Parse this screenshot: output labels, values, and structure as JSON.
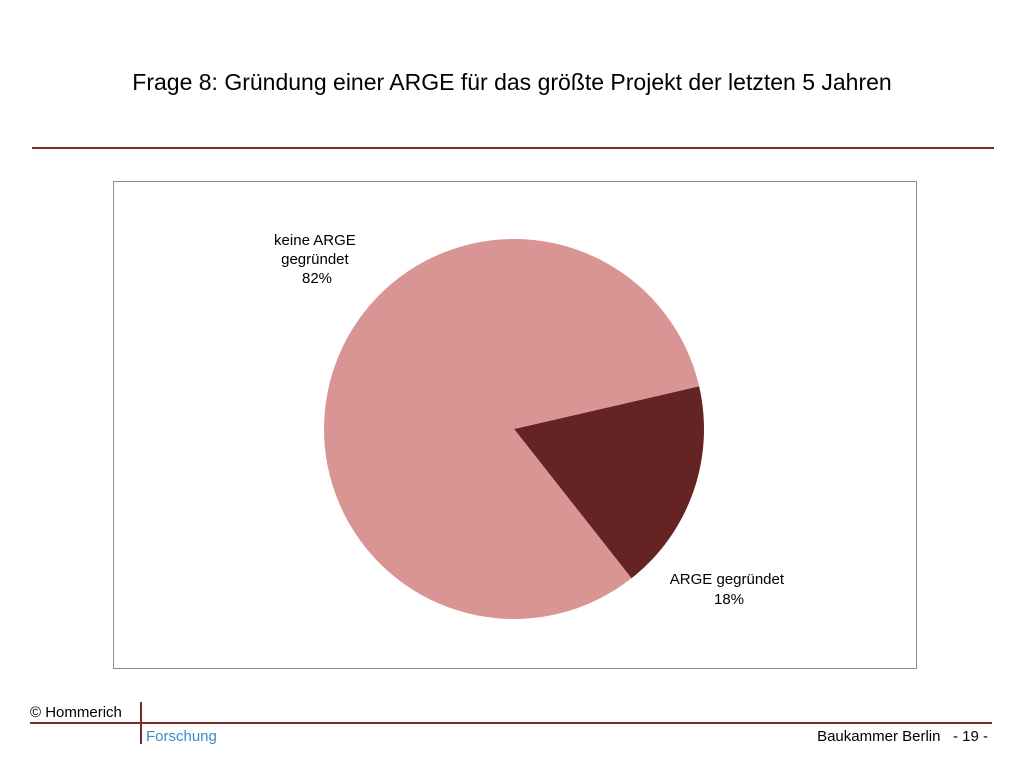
{
  "slide": {
    "title": "Frage 8: Gründung einer ARGE für das größte Projekt der letzten 5 Jahren"
  },
  "chart_data": {
    "type": "pie",
    "title": "",
    "slices": [
      {
        "label_lines": [
          "keine ARGE",
          "gegründet",
          "82%"
        ],
        "value": 82,
        "color": "#d99594"
      },
      {
        "label_lines": [
          "ARGE gegründet",
          "18%"
        ],
        "value": 18,
        "color": "#632423"
      }
    ],
    "legend": "none"
  },
  "footer": {
    "copyright": "© Hommerich",
    "department": "Forschung",
    "organization": "Baukammer Berlin",
    "page": "- 19 -"
  }
}
